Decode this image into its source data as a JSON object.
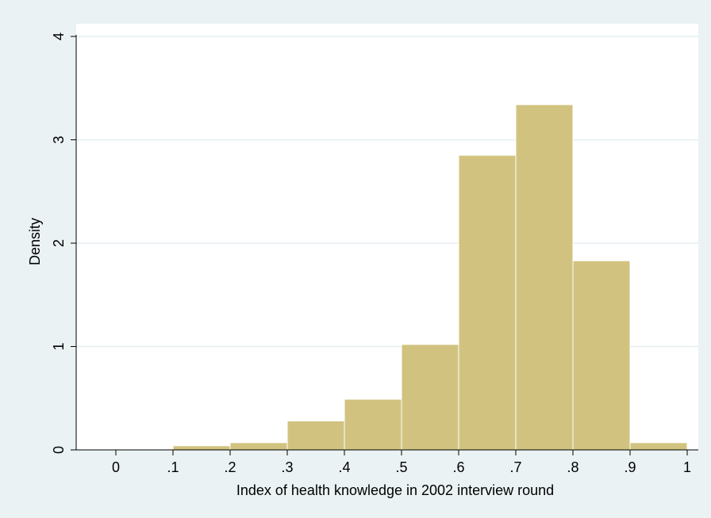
{
  "chart_data": {
    "type": "bar",
    "subtype": "histogram",
    "title": "",
    "xlabel": "Index of health knowledge in 2002 interview round",
    "ylabel": "Density",
    "xlim": [
      -0.07,
      1.02
    ],
    "ylim": [
      0,
      4.2
    ],
    "x_ticks": [
      {
        "value": 0,
        "label": "0"
      },
      {
        "value": 0.1,
        "label": ".1"
      },
      {
        "value": 0.2,
        "label": ".2"
      },
      {
        "value": 0.3,
        "label": ".3"
      },
      {
        "value": 0.4,
        "label": ".4"
      },
      {
        "value": 0.5,
        "label": ".5"
      },
      {
        "value": 0.6,
        "label": ".6"
      },
      {
        "value": 0.7,
        "label": ".7"
      },
      {
        "value": 0.8,
        "label": ".8"
      },
      {
        "value": 0.9,
        "label": ".9"
      },
      {
        "value": 1,
        "label": "1"
      }
    ],
    "y_ticks": [
      {
        "value": 0,
        "label": "0"
      },
      {
        "value": 1,
        "label": "1"
      },
      {
        "value": 2,
        "label": "2"
      },
      {
        "value": 3,
        "label": "3"
      },
      {
        "value": 4,
        "label": "4"
      }
    ],
    "bins": [
      {
        "x0": 0.1,
        "x1": 0.2,
        "density": 0.04
      },
      {
        "x0": 0.2,
        "x1": 0.3,
        "density": 0.07
      },
      {
        "x0": 0.3,
        "x1": 0.4,
        "density": 0.28
      },
      {
        "x0": 0.4,
        "x1": 0.5,
        "density": 0.49
      },
      {
        "x0": 0.5,
        "x1": 0.6,
        "density": 1.02
      },
      {
        "x0": 0.6,
        "x1": 0.7,
        "density": 2.85
      },
      {
        "x0": 0.7,
        "x1": 0.8,
        "density": 3.34
      },
      {
        "x0": 0.8,
        "x1": 0.9,
        "density": 1.83
      },
      {
        "x0": 0.9,
        "x1": 1.0,
        "density": 0.07
      }
    ],
    "grid": "horizontal",
    "colors": {
      "bar_fill": "#d1c37f",
      "bar_stroke": "#ffffff",
      "gridline": "#e6eef0",
      "plot_background": "#ffffff",
      "outer_background": "#eaf2f3",
      "axis": "#000000"
    }
  }
}
